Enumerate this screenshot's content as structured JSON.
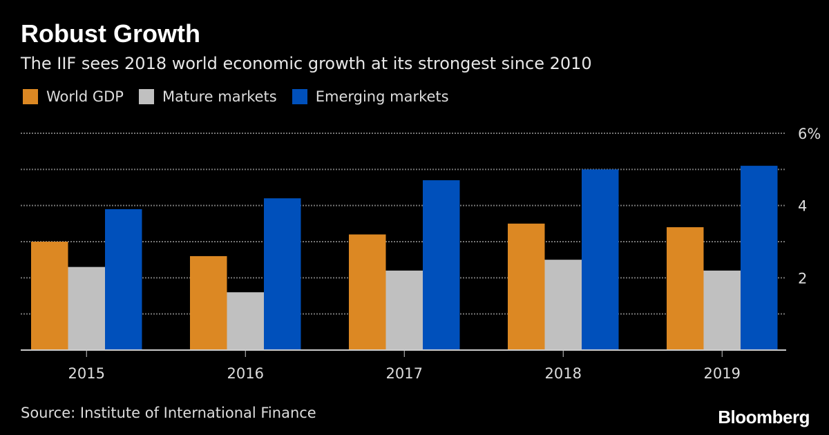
{
  "chart_data": {
    "type": "bar",
    "title": "Robust Growth",
    "subtitle": "The IIF sees 2018 world economic growth at its strongest since 2010",
    "categories": [
      "2015",
      "2016",
      "2017",
      "2018",
      "2019"
    ],
    "series": [
      {
        "name": "World GDP",
        "color": "#dc8823",
        "values": [
          3.0,
          2.6,
          3.2,
          3.5,
          3.4
        ]
      },
      {
        "name": "Mature markets",
        "color": "#c0c0c0",
        "values": [
          2.3,
          1.6,
          2.2,
          2.5,
          2.2
        ]
      },
      {
        "name": "Emerging markets",
        "color": "#0050bb",
        "values": [
          3.9,
          4.2,
          4.7,
          5.0,
          5.1
        ]
      }
    ],
    "ylim": [
      0,
      6
    ],
    "yticks": [
      0,
      1,
      2,
      3,
      4,
      5,
      6
    ],
    "ytick_labels": {
      "2": "2",
      "4": "4",
      "6": "6%"
    },
    "yaxis_side": "right",
    "grid": true,
    "legend_position": "top-left",
    "xlabel": "",
    "ylabel": ""
  },
  "source": "Source: Institute of International Finance",
  "logo": "Bloomberg"
}
